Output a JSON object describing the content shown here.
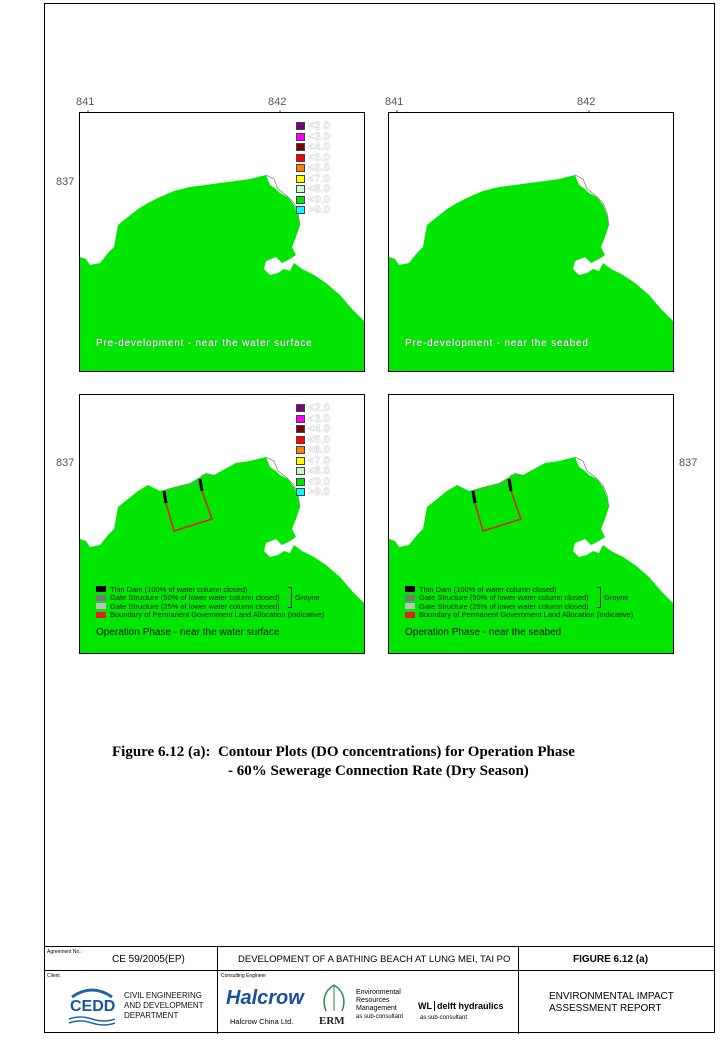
{
  "axes": {
    "x_ticks": [
      "841",
      "842"
    ],
    "y_tick": "837"
  },
  "legend": {
    "items": [
      {
        "label": "<2.0",
        "color": "#7b007b"
      },
      {
        "label": "<3.0",
        "color": "#ff00ff"
      },
      {
        "label": "<4.0",
        "color": "#7a0000"
      },
      {
        "label": "<5.0",
        "color": "#ff0000"
      },
      {
        "label": "<6.0",
        "color": "#ff8000"
      },
      {
        "label": "<7.0",
        "color": "#ffff00"
      },
      {
        "label": "<8.0",
        "color": "#c8ffc8"
      },
      {
        "label": "<9.0",
        "color": "#00e600"
      },
      {
        "label": ">9.0",
        "color": "#00ffff"
      }
    ]
  },
  "colors": {
    "water": "#00e600",
    "thin_dam": "#000000",
    "gate_50": "#777777",
    "gate_25": "#c0c0c0",
    "boundary": "#e02020"
  },
  "panels": {
    "top_left_caption": "Pre-development - near the water surface",
    "top_right_caption": "Pre-development - near the seabed",
    "bottom_left_caption": "Operation Phase - near the water surface",
    "bottom_right_caption": "Operation Phase - near the seabed"
  },
  "annotation": {
    "thin_dam": "Thin Dam (100% of water column closed)",
    "gate_50": "Gate Structure (50% of lower water column closed)",
    "gate_25": "Gate Structure (25% of lower water column closed)",
    "boundary": "Boundary of Permanent Government Land Allocation (Indicative)",
    "groyne": "Groyne"
  },
  "figure": {
    "number": "Figure 6.12 (a):",
    "title_line1": "Contour Plots (DO concentrations) for Operation Phase",
    "title_line2": "- 60% Sewerage Connection Rate (Dry Season)"
  },
  "title_block": {
    "agreement_label": "Agreement No.:",
    "agreement_no": "CE 59/2005(EP)",
    "project": "DEVELOPMENT OF A BATHING BEACH AT LUNG MEI, TAI PO",
    "figure_no": "FIGURE 6.12 (a)",
    "client_label": "Client",
    "client_logo": "CEDD",
    "client_name_1": "CIVIL ENGINEERING",
    "client_name_2": "AND DEVELOPMENT",
    "client_name_3": "DEPARTMENT",
    "consultant_label": "Consulting Engineer",
    "consultant_logo": "Halcrow",
    "consultant_name": "Halcrow China Ltd.",
    "erm_logo": "ERM",
    "erm_name_1": "Environmental",
    "erm_name_2": "Resources",
    "erm_name_3": "Management",
    "erm_sub": "as sub-consultant",
    "wl_prefix": "WL",
    "wl_name": "delft hydraulics",
    "wl_sub": "as sub-consultant",
    "report_1": "ENVIRONMENTAL IMPACT",
    "report_2": "ASSESSMENT REPORT"
  }
}
